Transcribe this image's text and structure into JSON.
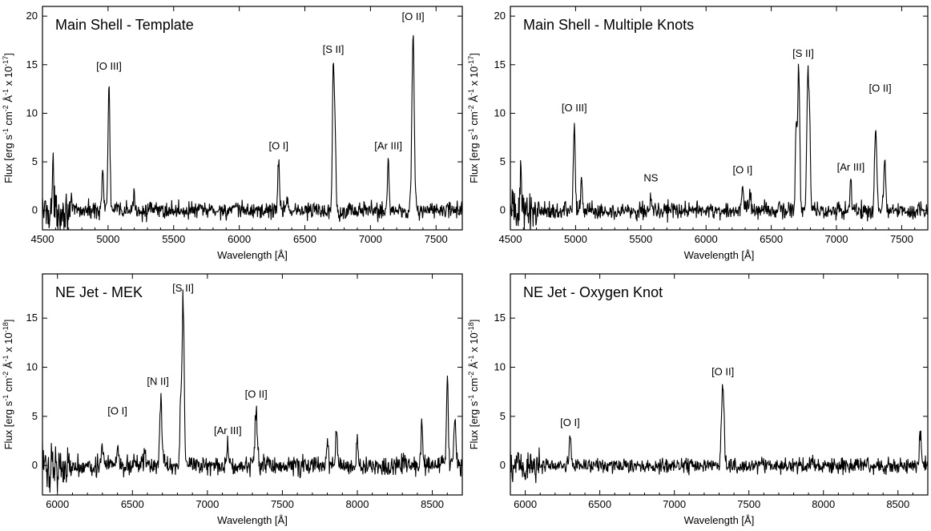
{
  "chart_data": [
    {
      "type": "line",
      "title": "Main Shell - Template",
      "xlabel": "Wavelength [Å]",
      "ylabel": {
        "pre": "Flux [erg s",
        "s1": "-1",
        "m1": " cm",
        "s2": "-2",
        "m2": " Å",
        "s3": "-1",
        "m3": " x 10",
        "s4": "-17",
        "post": "]"
      },
      "xlim": [
        4500,
        7700
      ],
      "ylim": [
        -2,
        21
      ],
      "xticks": [
        4500,
        5000,
        5500,
        6000,
        6500,
        7000,
        7500
      ],
      "yticks": [
        0,
        5,
        10,
        15,
        20
      ],
      "noise": 0.9,
      "peaks": [
        [
          5007,
          13.2,
          7
        ],
        [
          4959,
          4.2,
          7
        ],
        [
          4580,
          4.5,
          5
        ],
        [
          5200,
          1.2,
          8
        ],
        [
          6300,
          5.0,
          7
        ],
        [
          6364,
          1.6,
          7
        ],
        [
          6717,
          14.8,
          7
        ],
        [
          6731,
          7.5,
          6
        ],
        [
          7136,
          5.3,
          6
        ],
        [
          7325,
          18.2,
          9
        ]
      ],
      "labels": [
        {
          "text": "[O III]",
          "x": 5007,
          "y": 14.5
        },
        {
          "text": "[O I]",
          "x": 6300,
          "y": 6.3
        },
        {
          "text": "[S II]",
          "x": 6717,
          "y": 16.2
        },
        {
          "text": "[Ar III]",
          "x": 7136,
          "y": 6.3
        },
        {
          "text": "[O II]",
          "x": 7325,
          "y": 19.6
        }
      ]
    },
    {
      "type": "line",
      "title": "Main Shell - Multiple Knots",
      "xlabel": "Wavelength [Å]",
      "ylabel": {
        "pre": "Flux [erg s",
        "s1": "-1",
        "m1": " cm",
        "s2": "-2",
        "m2": " Å",
        "s3": "-1",
        "m3": " x 10",
        "s4": "-17",
        "post": "]"
      },
      "xlim": [
        4500,
        7700
      ],
      "ylim": [
        -2,
        21
      ],
      "xticks": [
        4500,
        5000,
        5500,
        6000,
        6500,
        7000,
        7500
      ],
      "yticks": [
        0,
        5,
        10,
        15,
        20
      ],
      "noise": 0.9,
      "peaks": [
        [
          4580,
          4.5,
          5
        ],
        [
          4990,
          8.8,
          7
        ],
        [
          5045,
          3.0,
          6
        ],
        [
          5577,
          2.0,
          5
        ],
        [
          6280,
          2.3,
          7
        ],
        [
          6340,
          1.6,
          6
        ],
        [
          6710,
          14.5,
          8
        ],
        [
          6690,
          8.8,
          6
        ],
        [
          6780,
          14.5,
          8
        ],
        [
          6795,
          7.3,
          6
        ],
        [
          7110,
          3.0,
          6
        ],
        [
          7300,
          8.6,
          8
        ],
        [
          7370,
          5.3,
          8
        ]
      ],
      "labels": [
        {
          "text": "[O III]",
          "x": 4990,
          "y": 10.2
        },
        {
          "text": "NS",
          "x": 5577,
          "y": 3.0
        },
        {
          "text": "[O I]",
          "x": 6280,
          "y": 3.8
        },
        {
          "text": "[S II]",
          "x": 6745,
          "y": 15.8
        },
        {
          "text": "[Ar III]",
          "x": 7110,
          "y": 4.1
        },
        {
          "text": "[O II]",
          "x": 7335,
          "y": 12.2
        }
      ]
    },
    {
      "type": "line",
      "title": "NE Jet - MEK",
      "xlabel": "Wavelength [Å]",
      "ylabel": {
        "pre": "Flux [erg s",
        "s1": "-1",
        "m1": " cm",
        "s2": "-2",
        "m2": " Å",
        "s3": "-1",
        "m3": " x 10",
        "s4": "-18",
        "post": "]"
      },
      "xlim": [
        5900,
        8700
      ],
      "ylim": [
        -3,
        19.5
      ],
      "xticks": [
        6000,
        6500,
        7000,
        7500,
        8000,
        8500
      ],
      "yticks": [
        0,
        5,
        10,
        15
      ],
      "noise": 1.0,
      "peaks": [
        [
          6300,
          2.2,
          6
        ],
        [
          6400,
          2.0,
          6
        ],
        [
          6583,
          1.5,
          6
        ],
        [
          6690,
          6.8,
          7
        ],
        [
          6822,
          6.0,
          6
        ],
        [
          6838,
          16.8,
          7
        ],
        [
          7136,
          2.5,
          6
        ],
        [
          7325,
          5.6,
          8
        ],
        [
          7800,
          2.8,
          6
        ],
        [
          7860,
          3.6,
          6
        ],
        [
          8000,
          2.7,
          6
        ],
        [
          8430,
          4.2,
          6
        ],
        [
          8600,
          9.0,
          6
        ],
        [
          8650,
          5.0,
          6
        ]
      ],
      "labels": [
        {
          "text": "[O I]",
          "x": 6400,
          "y": 5.2
        },
        {
          "text": "[N II]",
          "x": 6670,
          "y": 8.2
        },
        {
          "text": "[S II]",
          "x": 6838,
          "y": 17.7
        },
        {
          "text": "[Ar III]",
          "x": 7136,
          "y": 3.2
        },
        {
          "text": "[O II]",
          "x": 7325,
          "y": 6.9
        }
      ]
    },
    {
      "type": "line",
      "title": "NE Jet - Oxygen Knot",
      "xlabel": "Wavelength [Å]",
      "ylabel": {
        "pre": "Flux [erg s",
        "s1": "-1",
        "m1": " cm",
        "s2": "-2",
        "m2": " Å",
        "s3": "-1",
        "m3": " x 10",
        "s4": "-18",
        "post": "]"
      },
      "xlim": [
        5900,
        8700
      ],
      "ylim": [
        -3,
        19.5
      ],
      "xticks": [
        6000,
        6500,
        7000,
        7500,
        8000,
        8500
      ],
      "yticks": [
        0,
        5,
        10,
        15
      ],
      "noise": 0.8,
      "peaks": [
        [
          6300,
          3.0,
          6
        ],
        [
          7325,
          8.0,
          9
        ],
        [
          8650,
          3.5,
          6
        ]
      ],
      "labels": [
        {
          "text": "[O I]",
          "x": 6300,
          "y": 4.0
        },
        {
          "text": "[O II]",
          "x": 7325,
          "y": 9.2
        }
      ]
    }
  ]
}
